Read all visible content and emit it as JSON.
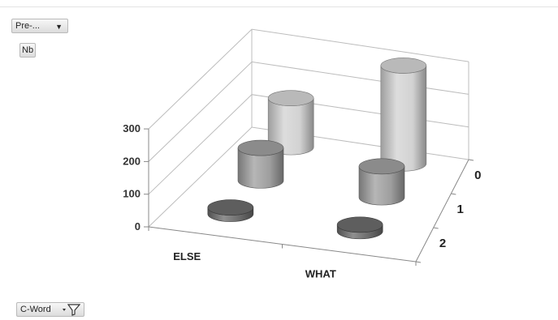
{
  "controls": {
    "page_field": "Pre-...",
    "data_field": "Nb",
    "axis_field": "C-Word"
  },
  "chart_data": {
    "type": "bar",
    "shape": "3d-cylinder",
    "categories": [
      "ELSE",
      "WHAT"
    ],
    "depth_categories": [
      "0",
      "1",
      "2"
    ],
    "y_ticks": [
      "0",
      "100",
      "200",
      "300"
    ],
    "ylim": [
      0,
      300
    ],
    "grid": true,
    "legend": "none",
    "series": [
      {
        "values": [
          150,
          300
        ]
      },
      {
        "values": [
          100,
          95
        ]
      },
      {
        "values": [
          20,
          20
        ]
      }
    ],
    "colors": [
      "#d2d2d2",
      "#9e9e9e",
      "#6b6b6b"
    ]
  }
}
